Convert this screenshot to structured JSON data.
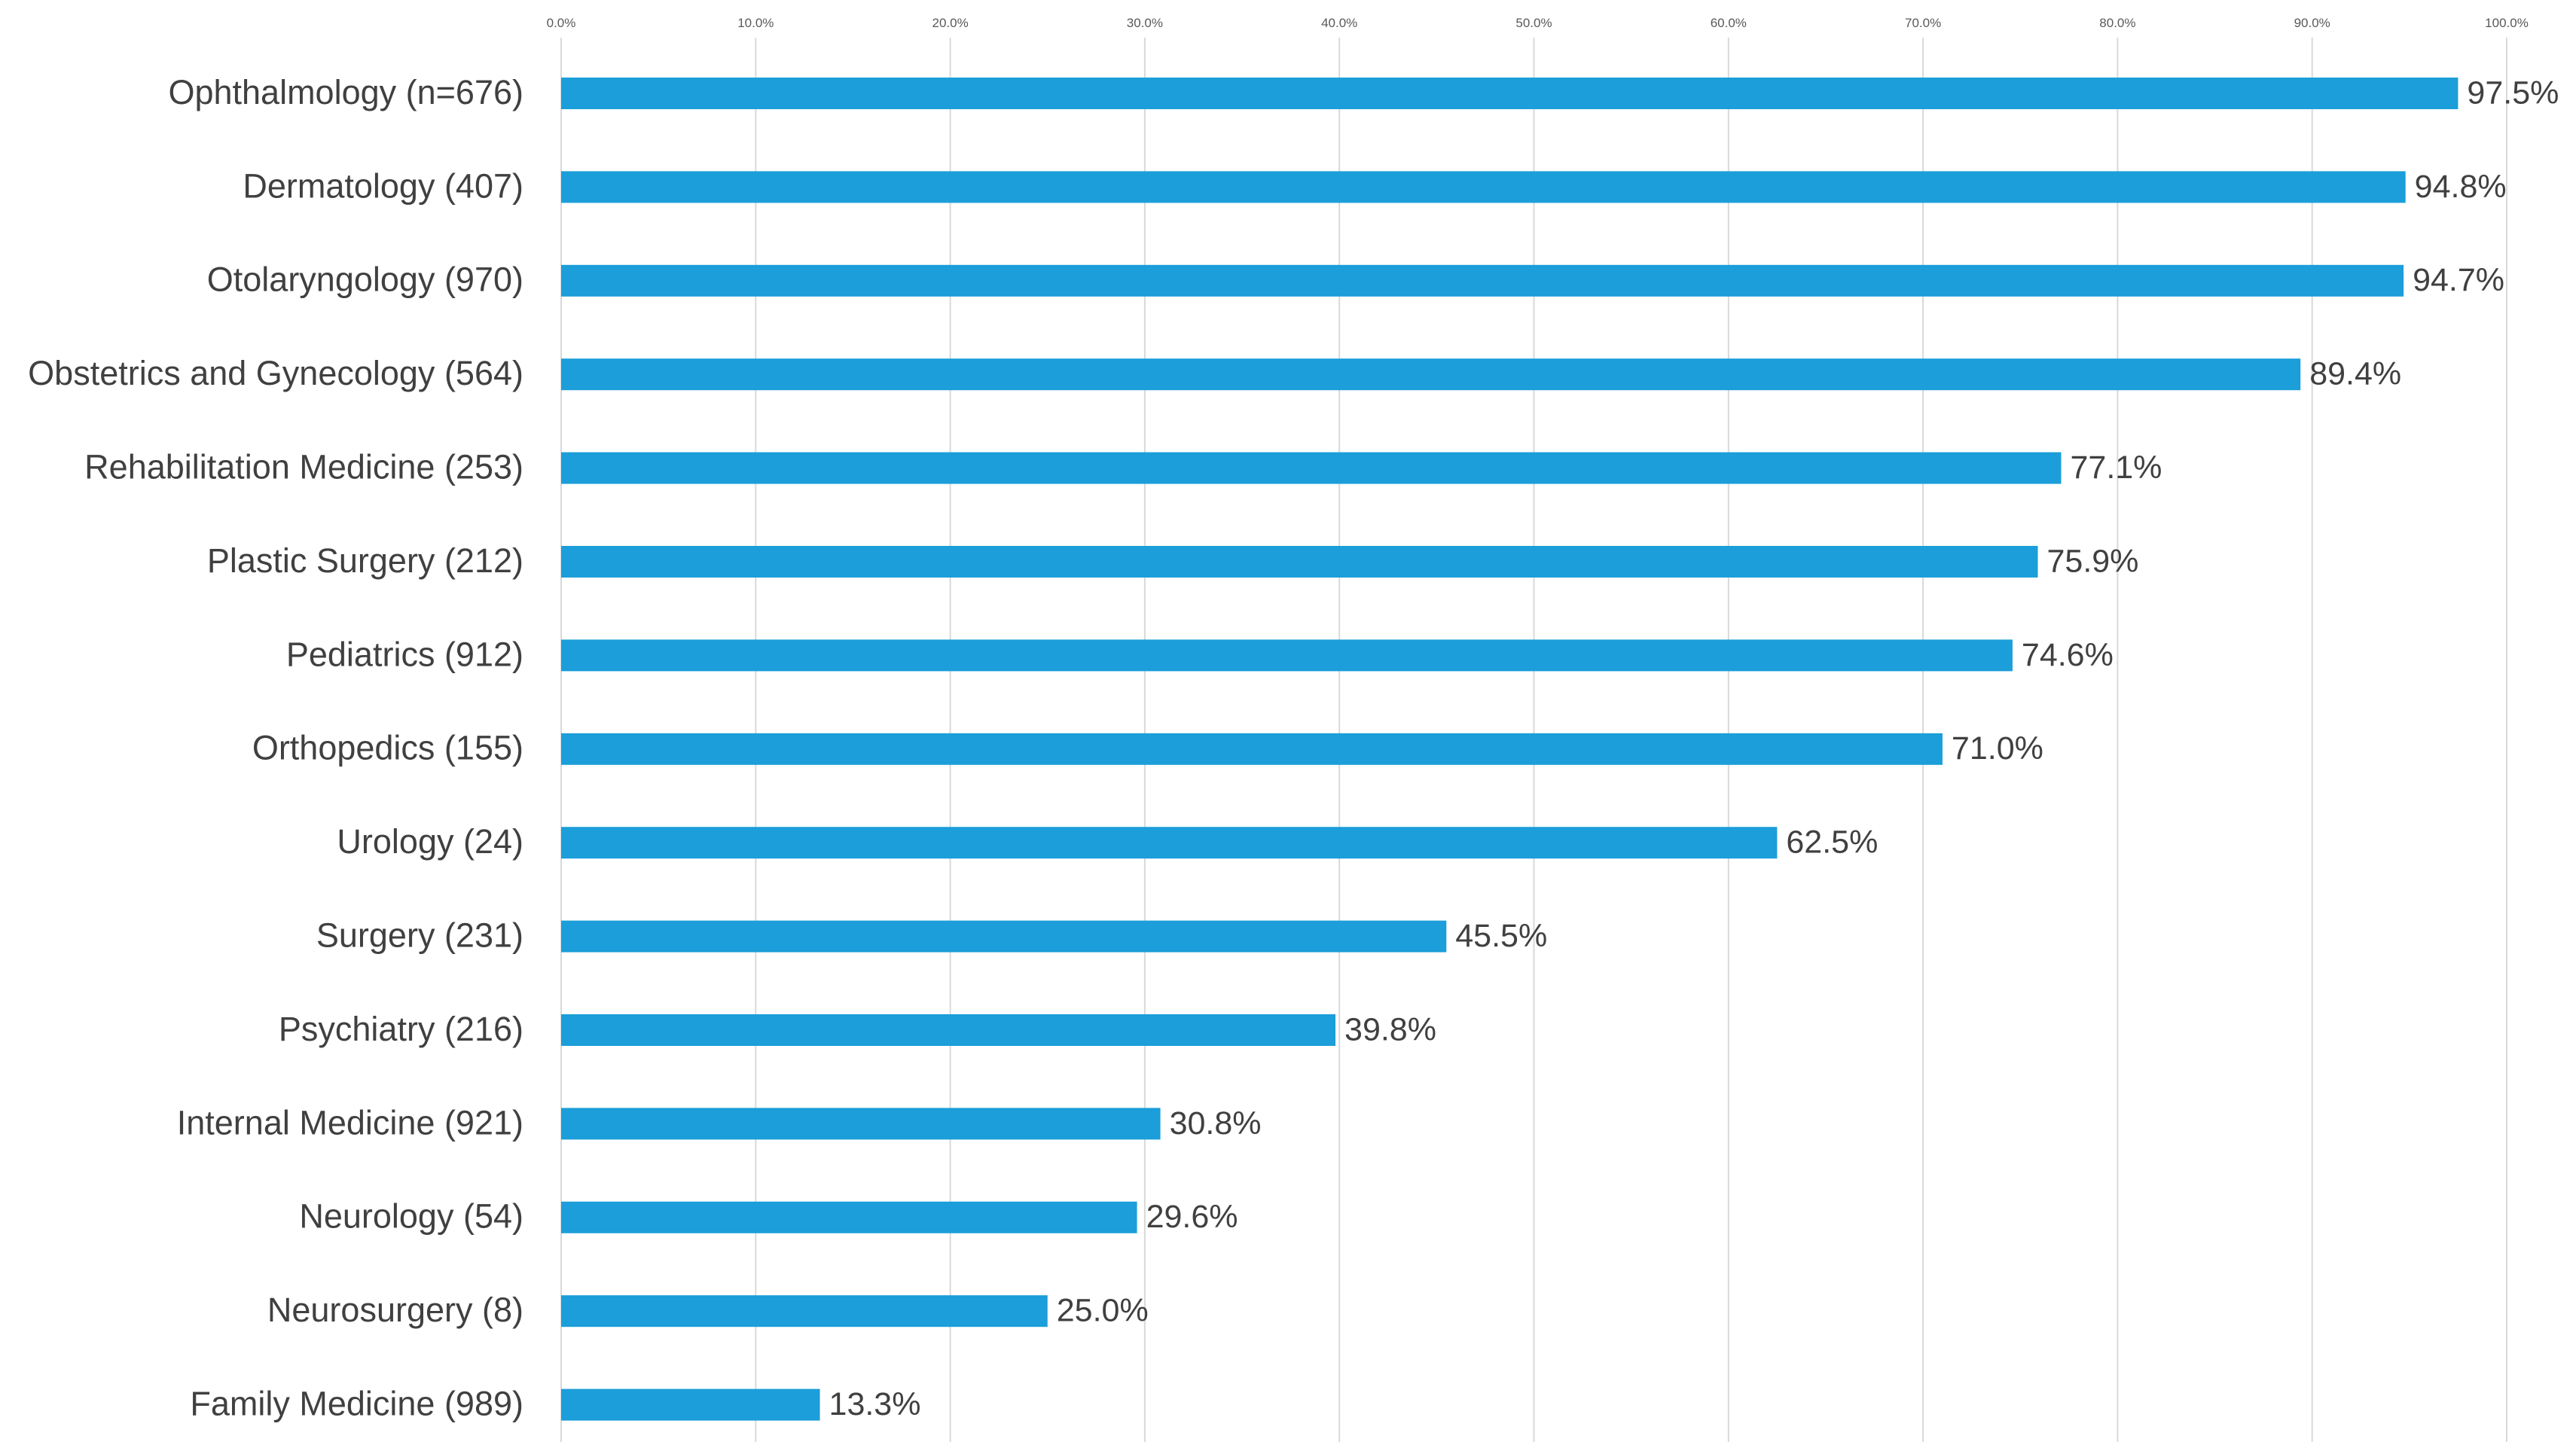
{
  "chart_data": {
    "type": "bar",
    "orientation": "horizontal",
    "title": "",
    "xlabel": "",
    "ylabel": "",
    "xlim": [
      0,
      100
    ],
    "grid": true,
    "bar_color": "#1b9ed9",
    "ticks": [
      {
        "value": 0,
        "label": "0.0%"
      },
      {
        "value": 10,
        "label": "10.0%"
      },
      {
        "value": 20,
        "label": "20.0%"
      },
      {
        "value": 30,
        "label": "30.0%"
      },
      {
        "value": 40,
        "label": "40.0%"
      },
      {
        "value": 50,
        "label": "50.0%"
      },
      {
        "value": 60,
        "label": "60.0%"
      },
      {
        "value": 70,
        "label": "70.0%"
      },
      {
        "value": 80,
        "label": "80.0%"
      },
      {
        "value": 90,
        "label": "90.0%"
      },
      {
        "value": 100,
        "label": "100.0%"
      }
    ],
    "categories": [
      "Ophthalmology (n=676)",
      "Dermatology (407)",
      "Otolaryngology (970)",
      "Obstetrics and Gynecology (564)",
      "Rehabilitation Medicine (253)",
      "Plastic Surgery (212)",
      "Pediatrics (912)",
      "Orthopedics (155)",
      "Urology (24)",
      "Surgery (231)",
      "Psychiatry (216)",
      "Internal Medicine (921)",
      "Neurology (54)",
      "Neurosurgery (8)",
      "Family Medicine (989)"
    ],
    "values": [
      97.5,
      94.8,
      94.7,
      89.4,
      77.1,
      75.9,
      74.6,
      71.0,
      62.5,
      45.5,
      39.8,
      30.8,
      29.6,
      25.0,
      13.3
    ],
    "value_labels": [
      "97.5%",
      "94.8%",
      "94.7%",
      "89.4%",
      "77.1%",
      "75.9%",
      "74.6%",
      "71.0%",
      "62.5%",
      "45.5%",
      "39.8%",
      "30.8%",
      "29.6%",
      "25.0%",
      "13.3%"
    ]
  }
}
